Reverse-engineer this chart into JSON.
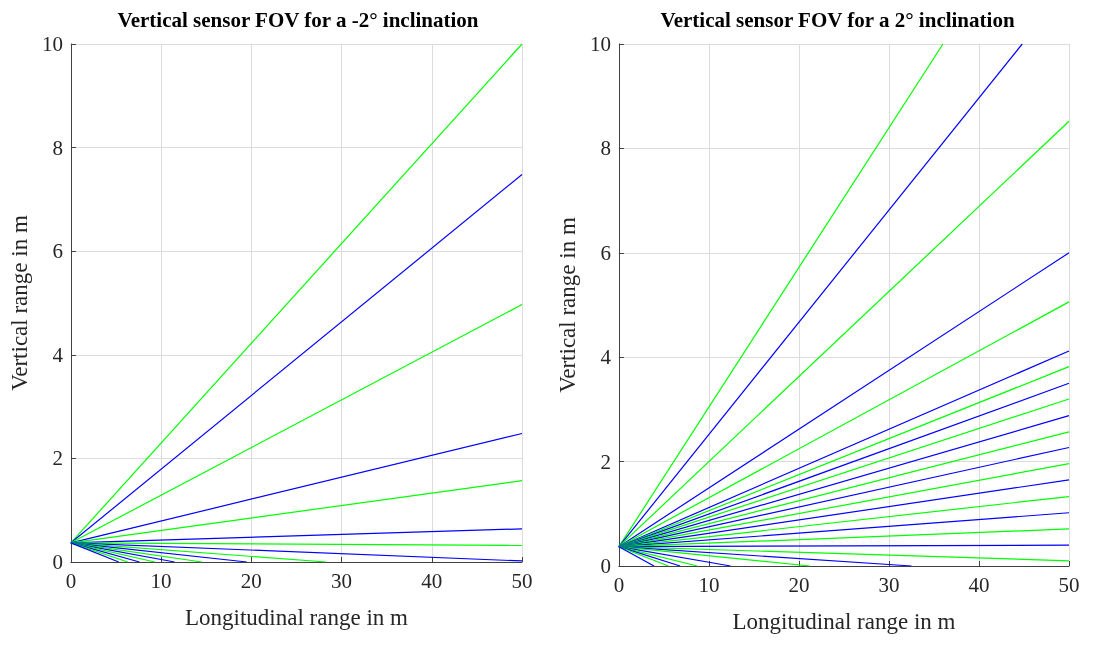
{
  "chart_data": [
    {
      "type": "line",
      "title": "Vertical sensor FOV for a -2° inclination",
      "xlabel": "Longitudinal range in m",
      "ylabel": "Vertical range in m",
      "xlim": [
        0,
        50
      ],
      "xticks": [
        0,
        10,
        20,
        30,
        40,
        50
      ],
      "ylim": [
        0,
        10
      ],
      "yticks": [
        0,
        2,
        4,
        6,
        8,
        10
      ],
      "grid": true,
      "line_style": "solid",
      "series": [
        {
          "color": "#00ff00",
          "x": [
            0,
            50
          ],
          "values": [
            0.37,
            10
          ]
        },
        {
          "color": "#0000ff",
          "x": [
            0,
            50
          ],
          "values": [
            0.37,
            7.48
          ]
        },
        {
          "color": "#00ff00",
          "x": [
            0,
            50
          ],
          "values": [
            0.37,
            4.97
          ]
        },
        {
          "color": "#0000ff",
          "x": [
            0,
            50
          ],
          "values": [
            0.37,
            2.48
          ]
        },
        {
          "color": "#00ff00",
          "x": [
            0,
            50
          ],
          "values": [
            0.37,
            1.57
          ]
        },
        {
          "color": "#0000ff",
          "x": [
            0,
            50
          ],
          "values": [
            0.37,
            0.64
          ]
        },
        {
          "color": "#00ff00",
          "x": [
            0,
            50
          ],
          "values": [
            0.37,
            0.32
          ]
        },
        {
          "color": "#0000ff",
          "x": [
            0,
            50
          ],
          "values": [
            0.37,
            0.02
          ]
        },
        {
          "color": "#00ff00",
          "x": [
            0,
            28.3
          ],
          "values": [
            0.37,
            0
          ]
        },
        {
          "color": "#0000ff",
          "x": [
            0,
            19.5
          ],
          "values": [
            0.37,
            0
          ]
        },
        {
          "color": "#00ff00",
          "x": [
            0,
            14.5
          ],
          "values": [
            0.37,
            0
          ]
        },
        {
          "color": "#0000ff",
          "x": [
            0,
            11.5
          ],
          "values": [
            0.37,
            0
          ]
        },
        {
          "color": "#00ff00",
          "x": [
            0,
            9.3
          ],
          "values": [
            0.37,
            0
          ]
        },
        {
          "color": "#0000ff",
          "x": [
            0,
            7.6
          ],
          "values": [
            0.37,
            0
          ]
        },
        {
          "color": "#00ff00",
          "x": [
            0,
            6.3
          ],
          "values": [
            0.37,
            0
          ]
        },
        {
          "color": "#0000ff",
          "x": [
            0,
            5.3
          ],
          "values": [
            0.37,
            0
          ]
        }
      ]
    },
    {
      "type": "line",
      "title": "Vertical sensor FOV for a 2° inclination",
      "xlabel": "Longitudinal range in m",
      "ylabel": "Vertical range in m",
      "xlim": [
        0,
        50
      ],
      "xticks": [
        0,
        10,
        20,
        30,
        40,
        50
      ],
      "ylim": [
        0,
        10
      ],
      "yticks": [
        0,
        2,
        4,
        6,
        8,
        10
      ],
      "grid": true,
      "line_style": "solid",
      "series": [
        {
          "color": "#00ff00",
          "x": [
            0,
            36
          ],
          "values": [
            0.37,
            10
          ]
        },
        {
          "color": "#0000ff",
          "x": [
            0,
            44.8
          ],
          "values": [
            0.37,
            10
          ]
        },
        {
          "color": "#00ff00",
          "x": [
            0,
            50
          ],
          "values": [
            0.37,
            8.52
          ]
        },
        {
          "color": "#0000ff",
          "x": [
            0,
            50
          ],
          "values": [
            0.37,
            6
          ]
        },
        {
          "color": "#00ff00",
          "x": [
            0,
            50
          ],
          "values": [
            0.37,
            5.06
          ]
        },
        {
          "color": "#0000ff",
          "x": [
            0,
            50
          ],
          "values": [
            0.37,
            4.12
          ]
        },
        {
          "color": "#00ff00",
          "x": [
            0,
            50
          ],
          "values": [
            0.37,
            3.82
          ]
        },
        {
          "color": "#0000ff",
          "x": [
            0,
            50
          ],
          "values": [
            0.37,
            3.5
          ]
        },
        {
          "color": "#00ff00",
          "x": [
            0,
            50
          ],
          "values": [
            0.37,
            3.2
          ]
        },
        {
          "color": "#0000ff",
          "x": [
            0,
            50
          ],
          "values": [
            0.37,
            2.88
          ]
        },
        {
          "color": "#00ff00",
          "x": [
            0,
            50
          ],
          "values": [
            0.37,
            2.57
          ]
        },
        {
          "color": "#0000ff",
          "x": [
            0,
            50
          ],
          "values": [
            0.37,
            2.27
          ]
        },
        {
          "color": "#00ff00",
          "x": [
            0,
            50
          ],
          "values": [
            0.37,
            1.96
          ]
        },
        {
          "color": "#0000ff",
          "x": [
            0,
            50
          ],
          "values": [
            0.37,
            1.65
          ]
        },
        {
          "color": "#00ff00",
          "x": [
            0,
            50
          ],
          "values": [
            0.37,
            1.33
          ]
        },
        {
          "color": "#0000ff",
          "x": [
            0,
            50
          ],
          "values": [
            0.37,
            1.02
          ]
        },
        {
          "color": "#00ff00",
          "x": [
            0,
            50
          ],
          "values": [
            0.37,
            0.71
          ]
        },
        {
          "color": "#0000ff",
          "x": [
            0,
            50
          ],
          "values": [
            0.37,
            0.4
          ]
        },
        {
          "color": "#00ff00",
          "x": [
            0,
            50
          ],
          "values": [
            0.37,
            0.1
          ]
        },
        {
          "color": "#0000ff",
          "x": [
            0,
            32.5
          ],
          "values": [
            0.37,
            0
          ]
        },
        {
          "color": "#00ff00",
          "x": [
            0,
            21.2
          ],
          "values": [
            0.37,
            0
          ]
        },
        {
          "color": "#0000ff",
          "x": [
            0,
            12.4
          ],
          "values": [
            0.37,
            0
          ]
        },
        {
          "color": "#00ff00",
          "x": [
            0,
            8.7
          ],
          "values": [
            0.37,
            0
          ]
        },
        {
          "color": "#0000ff",
          "x": [
            0,
            6.8
          ],
          "values": [
            0.37,
            0
          ]
        },
        {
          "color": "#00ff00",
          "x": [
            0,
            5.5
          ],
          "values": [
            0.37,
            0
          ]
        },
        {
          "color": "#0000ff",
          "x": [
            0,
            3.9
          ],
          "values": [
            0.37,
            0
          ]
        }
      ]
    }
  ]
}
